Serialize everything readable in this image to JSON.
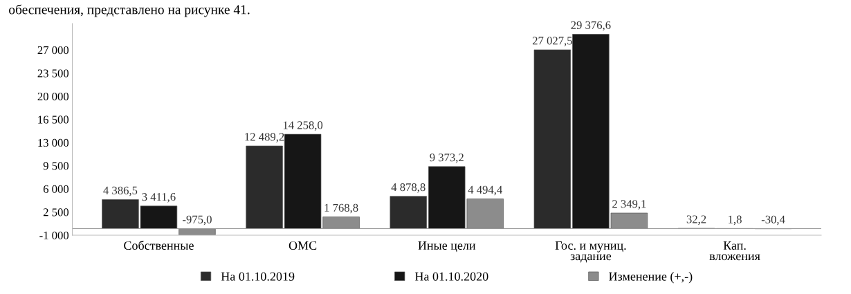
{
  "chart_data": {
    "type": "bar",
    "annotations": [
      "обеспечения, представлено на рисунке 41."
    ],
    "categories": [
      "Собственные",
      "ОМС",
      "Иные цели",
      "Гос. и муниц.\nзадание",
      "Кап.\nвложения"
    ],
    "series": [
      {
        "name": "На 01.10.2019",
        "color": "#2b2b2b",
        "values": [
          4386.5,
          12489.2,
          4878.8,
          27027.5,
          32.2
        ],
        "value_labels": [
          "4 386,5",
          "12 489,2",
          "4 878,8",
          "27 027,5",
          "32,2"
        ]
      },
      {
        "name": "На 01.10.2020",
        "color": "#161616",
        "values": [
          3411.6,
          14258.0,
          9373.2,
          29376.6,
          1.8
        ],
        "value_labels": [
          "3 411,6",
          "14 258,0",
          "9 373,2",
          "29 376,6",
          "1,8"
        ]
      },
      {
        "name": "Изменение (+,-)",
        "color": "#8c8c8c",
        "values": [
          -975.0,
          1768.8,
          4494.4,
          2349.1,
          -30.4
        ],
        "value_labels": [
          "-975,0",
          "1 768,8",
          "4 494,4",
          "2 349,1",
          "-30,4"
        ]
      }
    ],
    "ylim": [
      -1000,
      31000
    ],
    "yticks": [
      {
        "value": -1000,
        "label": "-1 000"
      },
      {
        "value": 2500,
        "label": "2 500"
      },
      {
        "value": 6000,
        "label": "6 000"
      },
      {
        "value": 9500,
        "label": "9 500"
      },
      {
        "value": 13000,
        "label": "13 000"
      },
      {
        "value": 16500,
        "label": "16 500"
      },
      {
        "value": 20000,
        "label": "20 000"
      },
      {
        "value": 23500,
        "label": "23 500"
      },
      {
        "value": 27000,
        "label": "27 000"
      }
    ],
    "grid": false,
    "legend": "bottom"
  }
}
